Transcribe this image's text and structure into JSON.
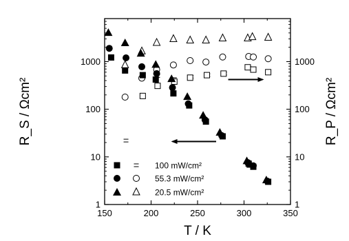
{
  "chart_data": {
    "type": "scatter",
    "title": "",
    "xlabel": "T / K",
    "ylabel_left": "R_S / Ωcm²",
    "ylabel_right": "R_P / Ωcm²",
    "xlim": [
      150,
      350
    ],
    "ylim": [
      1,
      8000
    ],
    "yscale": "log",
    "xticks": [
      150,
      200,
      250,
      300,
      350
    ],
    "yticks": [
      1,
      10,
      100,
      1000
    ],
    "grid": false,
    "legend_position": "lower-left",
    "legend": [
      {
        "label": "100 mW/cm²",
        "rs_marker": "filled-square",
        "rp_marker": "dash"
      },
      {
        "label": "55.3 mW/cm²",
        "rs_marker": "filled-circle",
        "rp_marker": "open-circle"
      },
      {
        "label": "20.5 mW/cm²",
        "rs_marker": "filled-triangle",
        "rp_marker": "open-triangle"
      }
    ],
    "annotations": [
      {
        "type": "arrow",
        "direction": "left",
        "meaning": "R_S uses left axis",
        "from": [
          270,
          21
        ],
        "to": [
          223,
          21
        ]
      },
      {
        "type": "arrow",
        "direction": "right",
        "meaning": "R_P uses right axis",
        "from": [
          283,
          420
        ],
        "to": [
          320,
          420
        ]
      }
    ],
    "series": [
      {
        "name": "R_S 100 mW/cm²",
        "axis": "left",
        "marker": "filled-square",
        "x": [
          157,
          172,
          191,
          205,
          224,
          241,
          259,
          277,
          305,
          310,
          326
        ],
        "y": [
          1220,
          650,
          520,
          420,
          215,
          120,
          55,
          27,
          7.2,
          6.2,
          3.0
        ]
      },
      {
        "name": "R_S 55.3 mW/cm²",
        "axis": "left",
        "marker": "filled-circle",
        "x": [
          155,
          173,
          190,
          206,
          223,
          240,
          258,
          276,
          304,
          310,
          325
        ],
        "y": [
          1900,
          1200,
          780,
          560,
          285,
          130,
          60,
          28,
          7.6,
          6.5,
          3.1
        ]
      },
      {
        "name": "R_S 20.5 mW/cm²",
        "axis": "left",
        "marker": "filled-triangle",
        "x": [
          154,
          172,
          189,
          205,
          222,
          239,
          256,
          274,
          303,
          307,
          324
        ],
        "y": [
          4100,
          2500,
          1500,
          880,
          440,
          185,
          75,
          33,
          8.3,
          7.0,
          3.3
        ]
      },
      {
        "name": "R_P 100 mW/cm²",
        "axis": "right",
        "marker": "dash",
        "x": [
          173,
          207,
          225,
          243,
          261,
          279,
          305,
          309,
          326
        ],
        "y": [
          22,
          500,
          430,
          480,
          520,
          560,
          750,
          700,
          600
        ]
      },
      {
        "name": "R_P 55.3 mW/cm²",
        "axis": "right",
        "marker": "open-circle",
        "x": [
          172,
          190,
          206,
          224,
          242,
          259,
          277,
          305,
          310,
          326
        ],
        "y": [
          180,
          450,
          680,
          850,
          1050,
          980,
          1250,
          1280,
          1250,
          1150
        ]
      },
      {
        "name": "R_P 20.5 mW/cm²",
        "axis": "right",
        "marker": "open-triangle",
        "x": [
          172,
          190,
          206,
          224,
          242,
          259,
          277,
          304,
          309,
          326
        ],
        "y": [
          850,
          1650,
          2500,
          3000,
          2800,
          2800,
          3100,
          3100,
          3300,
          3200
        ]
      },
      {
        "name": "R_P 100 mW/cm² (open square)",
        "axis": "right",
        "marker": "open-square",
        "x": [
          191,
          207,
          225,
          242,
          260,
          278,
          304,
          310,
          326
        ],
        "y": [
          190,
          310,
          380,
          460,
          520,
          560,
          760,
          680,
          600
        ]
      }
    ]
  }
}
